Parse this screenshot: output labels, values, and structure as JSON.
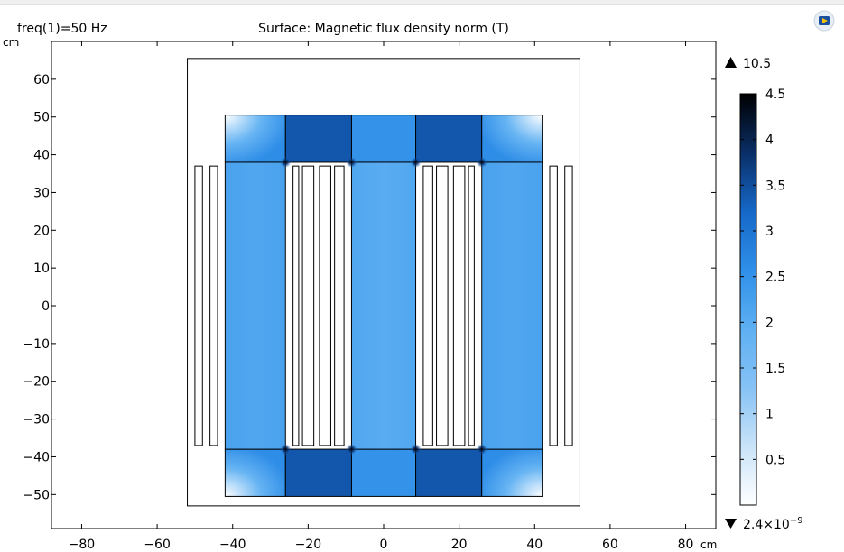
{
  "header": {
    "freq_label": "freq(1)=50 Hz",
    "title": "Surface: Magnetic flux density norm (T)"
  },
  "toolbar": {
    "icon": "app-logo-icon"
  },
  "chart_data": {
    "type": "heatmap",
    "title": "Surface: Magnetic flux density norm (T)",
    "x_unit": "cm",
    "y_unit": "cm",
    "xlim": [
      -88,
      88
    ],
    "ylim": [
      -59,
      70
    ],
    "xticks": [
      -80,
      -60,
      -40,
      -20,
      0,
      20,
      40,
      60,
      80
    ],
    "yticks": [
      -50,
      -40,
      -30,
      -20,
      -10,
      0,
      10,
      20,
      30,
      40,
      50,
      60
    ],
    "colorbar": {
      "label": "Magnetic flux density norm (T)",
      "min": 0,
      "max": 4.5,
      "ticks": [
        0.5,
        1,
        1.5,
        2,
        2.5,
        3,
        3.5,
        4,
        4.5
      ],
      "max_value": "10.5",
      "min_value_base": "2.4×10",
      "min_value_exp": "−9",
      "colors": [
        "#ffffff",
        "#c9e3f8",
        "#86c2f5",
        "#5eb0f2",
        "#2f8fe8",
        "#1668c8",
        "#0a2e66",
        "#000000"
      ]
    },
    "geometry": {
      "outer_box": [
        [
          -52,
          -53
        ],
        [
          52,
          65.5
        ]
      ],
      "core": [
        [
          -42,
          -50.5
        ],
        [
          42,
          50.5
        ]
      ],
      "yokes": {
        "top_y": [
          38,
          50.5
        ],
        "bottom_y": [
          -50.5,
          -38
        ]
      },
      "columns": [
        {
          "name": "left-leg",
          "x": [
            -42,
            -26
          ],
          "y": [
            -38,
            38
          ],
          "B": 2.1
        },
        {
          "name": "center-leg",
          "x": [
            -8.5,
            8.5
          ],
          "y": [
            -38,
            38
          ],
          "B": 2.0
        },
        {
          "name": "right-leg",
          "x": [
            26,
            42
          ],
          "y": [
            -38,
            38
          ],
          "B": 2.1
        }
      ],
      "yoke_segments": [
        {
          "x": [
            -42,
            -26
          ],
          "B": 1.3,
          "corner": "outer-left"
        },
        {
          "x": [
            -26,
            -8.5
          ],
          "B": 3.4
        },
        {
          "x": [
            -8.5,
            8.5
          ],
          "B": 2.5
        },
        {
          "x": [
            8.5,
            26
          ],
          "B": 3.4
        },
        {
          "x": [
            26,
            42
          ],
          "B": 1.3,
          "corner": "outer-right"
        }
      ],
      "coils": [
        [
          -50,
          -48
        ],
        [
          -46,
          -44
        ],
        [
          -24,
          -22.5
        ],
        [
          -21.5,
          -18.5
        ],
        [
          -17,
          -14
        ],
        [
          -13,
          -10.5
        ],
        [
          10.5,
          13
        ],
        [
          14,
          17
        ],
        [
          18.5,
          21.5
        ],
        [
          22.5,
          24
        ],
        [
          44,
          46
        ],
        [
          48,
          50
        ]
      ],
      "coil_y": [
        -37,
        37
      ],
      "hotspots": [
        [
          -26,
          38
        ],
        [
          -8.5,
          38
        ],
        [
          8.5,
          38
        ],
        [
          26,
          38
        ],
        [
          -26,
          -38
        ],
        [
          -8.5,
          -38
        ],
        [
          8.5,
          -38
        ],
        [
          26,
          -38
        ]
      ]
    }
  }
}
